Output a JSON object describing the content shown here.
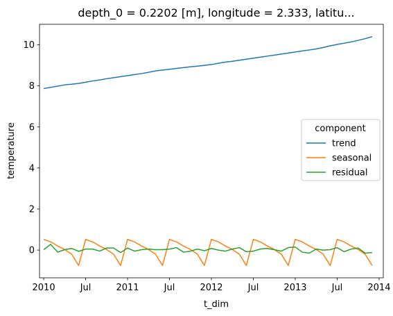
{
  "chart_data": {
    "type": "line",
    "title": "depth_0 = 0.2202 [m], longitude = 2.333, latitu...",
    "xlabel": "t_dim",
    "ylabel": "temperature",
    "x_ticks": [
      {
        "label": "2010",
        "month_index": 0
      },
      {
        "label": "Jul",
        "month_index": 6
      },
      {
        "label": "2011",
        "month_index": 12
      },
      {
        "label": "Jul",
        "month_index": 18
      },
      {
        "label": "2012",
        "month_index": 24
      },
      {
        "label": "Jul",
        "month_index": 30
      },
      {
        "label": "2013",
        "month_index": 36
      },
      {
        "label": "Jul",
        "month_index": 42
      },
      {
        "label": "2014",
        "month_index": 48
      }
    ],
    "x_dates": [
      "2010-01",
      "2010-02",
      "2010-03",
      "2010-04",
      "2010-05",
      "2010-06",
      "2010-07",
      "2010-08",
      "2010-09",
      "2010-10",
      "2010-11",
      "2010-12",
      "2011-01",
      "2011-02",
      "2011-03",
      "2011-04",
      "2011-05",
      "2011-06",
      "2011-07",
      "2011-08",
      "2011-09",
      "2011-10",
      "2011-11",
      "2011-12",
      "2012-01",
      "2012-02",
      "2012-03",
      "2012-04",
      "2012-05",
      "2012-06",
      "2012-07",
      "2012-08",
      "2012-09",
      "2012-10",
      "2012-11",
      "2012-12",
      "2013-01",
      "2013-02",
      "2013-03",
      "2013-04",
      "2013-05",
      "2013-06",
      "2013-07",
      "2013-08",
      "2013-09",
      "2013-10",
      "2013-11",
      "2013-12"
    ],
    "xlim": [
      -0.6,
      48.6
    ],
    "y_ticks": [
      0,
      2,
      4,
      6,
      8,
      10
    ],
    "ylim": [
      -1.35,
      11.0
    ],
    "legend_title": "component",
    "legend_position": "right",
    "series": [
      {
        "name": "trend",
        "color": "#1f77b4",
        "values": [
          7.87,
          7.93,
          7.99,
          8.05,
          8.08,
          8.12,
          8.18,
          8.24,
          8.29,
          8.35,
          8.4,
          8.45,
          8.5,
          8.55,
          8.6,
          8.66,
          8.73,
          8.77,
          8.81,
          8.85,
          8.89,
          8.93,
          8.96,
          9.0,
          9.04,
          9.1,
          9.16,
          9.2,
          9.25,
          9.3,
          9.35,
          9.4,
          9.45,
          9.5,
          9.55,
          9.6,
          9.65,
          9.7,
          9.75,
          9.8,
          9.87,
          9.95,
          10.02,
          10.08,
          10.14,
          10.22,
          10.3,
          10.4
        ]
      },
      {
        "name": "seasonal",
        "color": "#ff7f0e",
        "values": [
          0.52,
          0.4,
          0.2,
          0.03,
          -0.2,
          -0.75,
          0.52,
          0.4,
          0.2,
          0.03,
          -0.2,
          -0.75,
          0.52,
          0.4,
          0.2,
          0.03,
          -0.2,
          -0.75,
          0.52,
          0.4,
          0.2,
          0.03,
          -0.2,
          -0.75,
          0.52,
          0.4,
          0.2,
          0.03,
          -0.2,
          -0.75,
          0.52,
          0.4,
          0.2,
          0.03,
          -0.2,
          -0.75,
          0.52,
          0.4,
          0.2,
          0.03,
          -0.2,
          -0.75,
          0.52,
          0.4,
          0.2,
          0.03,
          -0.2,
          -0.75
        ]
      },
      {
        "name": "residual",
        "color": "#2ca02c",
        "values": [
          0.02,
          0.28,
          -0.1,
          0.02,
          0.08,
          -0.06,
          0.05,
          0.05,
          -0.05,
          0.1,
          0.1,
          -0.12,
          0.1,
          -0.05,
          0.02,
          0.05,
          0.02,
          0.02,
          0.05,
          0.12,
          -0.1,
          -0.05,
          0.05,
          -0.03,
          0.08,
          0.0,
          -0.05,
          0.05,
          0.12,
          -0.08,
          -0.05,
          0.05,
          0.08,
          0.02,
          -0.05,
          0.12,
          0.15,
          -0.1,
          -0.15,
          0.05,
          0.0,
          0.02,
          0.12,
          -0.08,
          0.05,
          0.1,
          -0.15,
          -0.12
        ]
      }
    ]
  }
}
